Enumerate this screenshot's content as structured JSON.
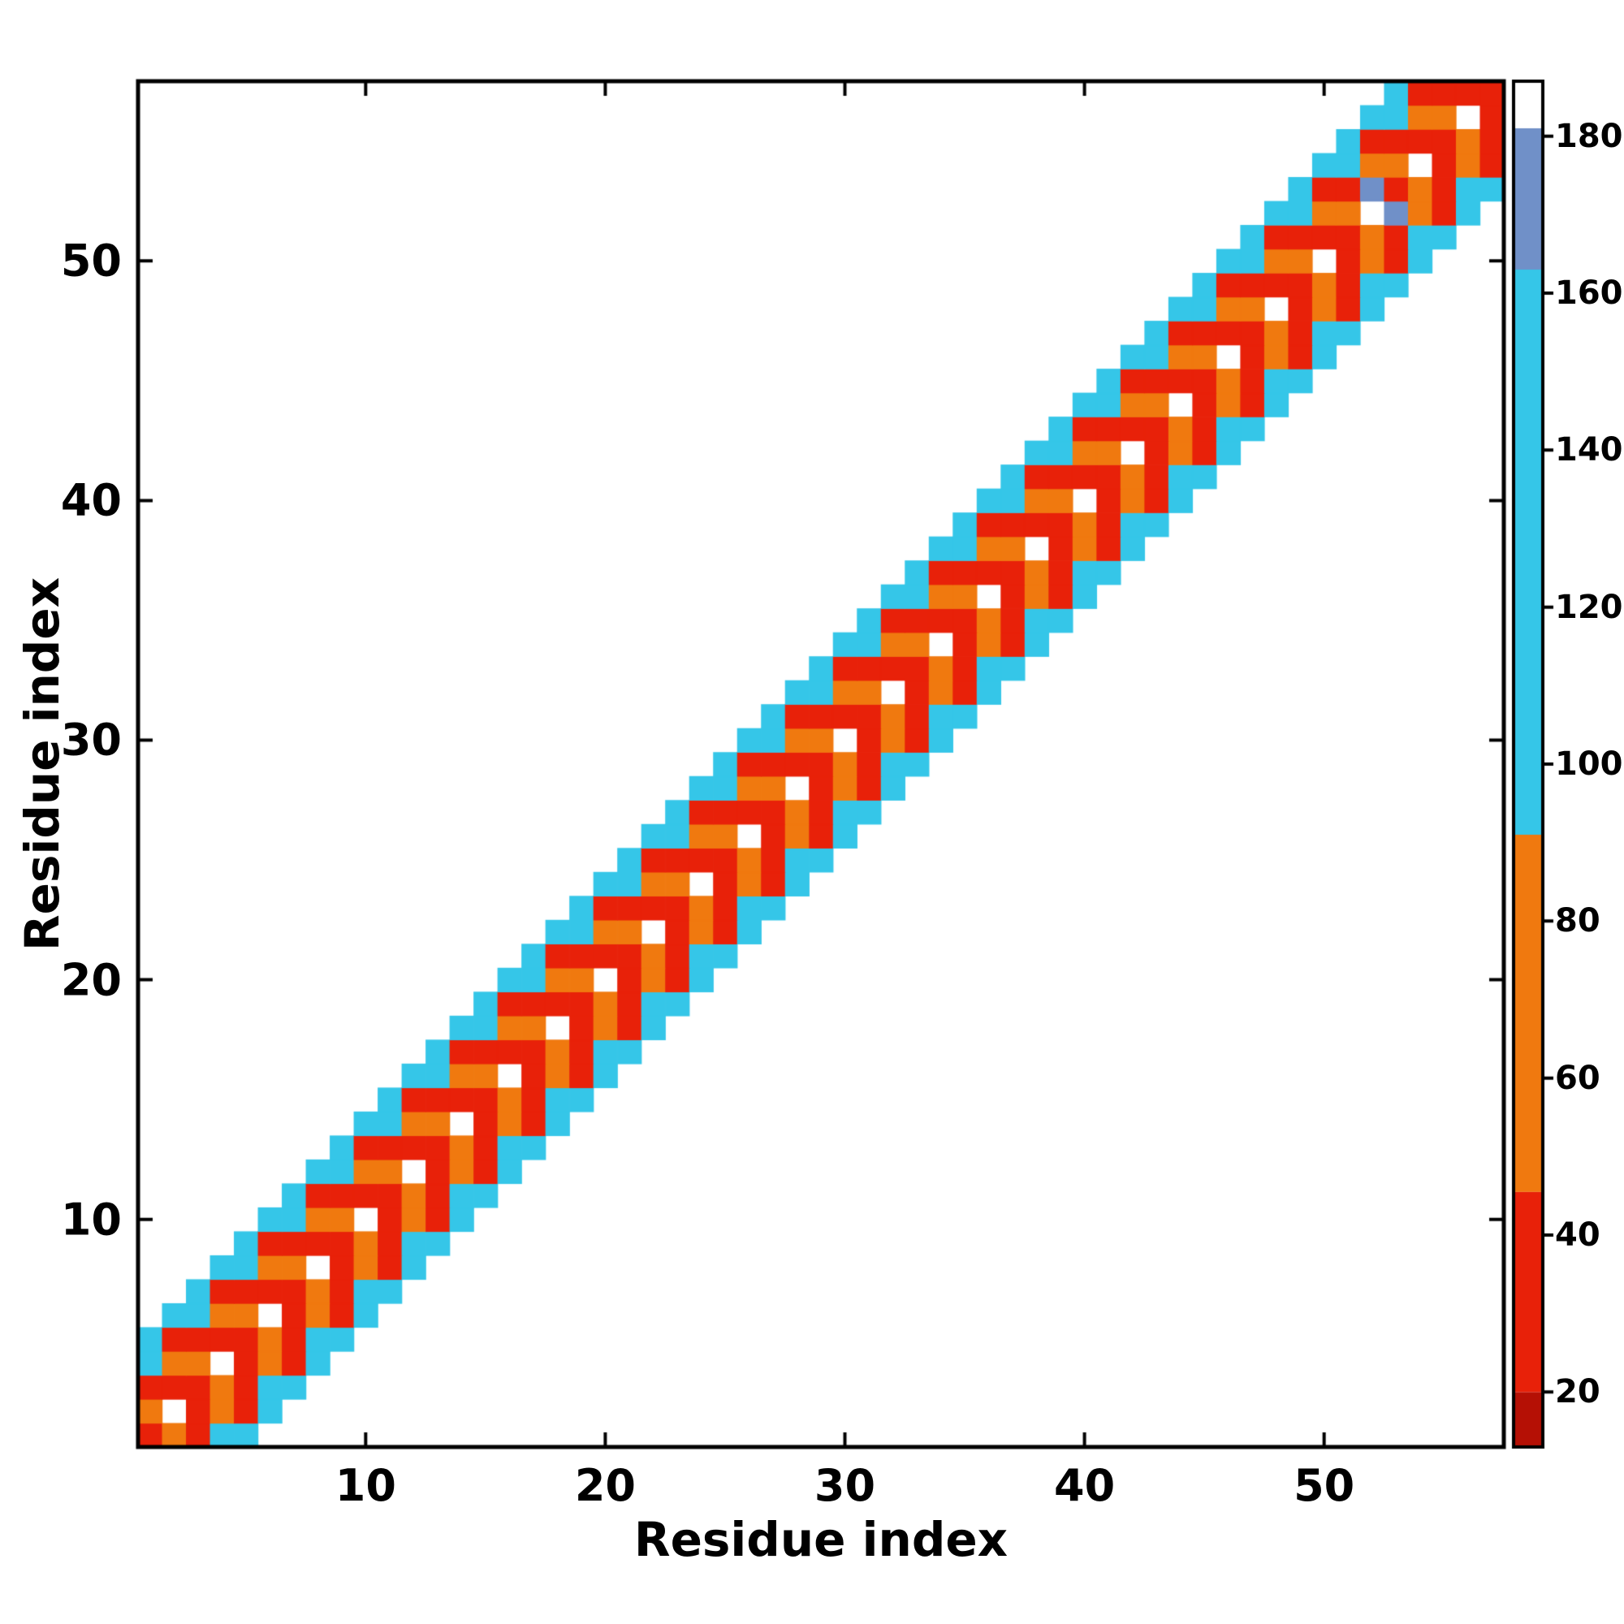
{
  "chart_data": {
    "type": "heatmap",
    "title": "",
    "xlabel": "Residue index",
    "ylabel": "Residue index",
    "n": 57,
    "x_ticks": [
      10,
      20,
      30,
      40,
      50
    ],
    "y_ticks": [
      10,
      20,
      30,
      40,
      50
    ],
    "value_range": [
      13,
      187
    ],
    "colorbar_ticks": [
      20,
      40,
      60,
      80,
      100,
      120,
      140,
      160,
      180
    ],
    "colormap_segments": [
      {
        "from": 13,
        "to": 20,
        "color": "#b51005"
      },
      {
        "from": 20,
        "to": 45.5,
        "color": "#e82109"
      },
      {
        "from": 45.5,
        "to": 91,
        "color": "#f0790f"
      },
      {
        "from": 91,
        "to": 163,
        "color": "#35c6e8"
      },
      {
        "from": 163,
        "to": 181,
        "color": "#7090c8"
      },
      {
        "from": 181,
        "to": 187,
        "color": "#ffffff"
      }
    ],
    "band": {
      "max_offset": 4,
      "parity_order": [
        "even_base",
        "odd_base"
      ],
      "values": {
        "d0": [
          null,
          28
        ],
        "d1": [
          28,
          62
        ],
        "d2": [
          62,
          28
        ],
        "d3": [
          28,
          110
        ],
        "d4": [
          110,
          110
        ]
      }
    },
    "special_cells": [
      [
        53,
        52,
        170
      ],
      [
        52,
        53,
        170
      ]
    ]
  }
}
